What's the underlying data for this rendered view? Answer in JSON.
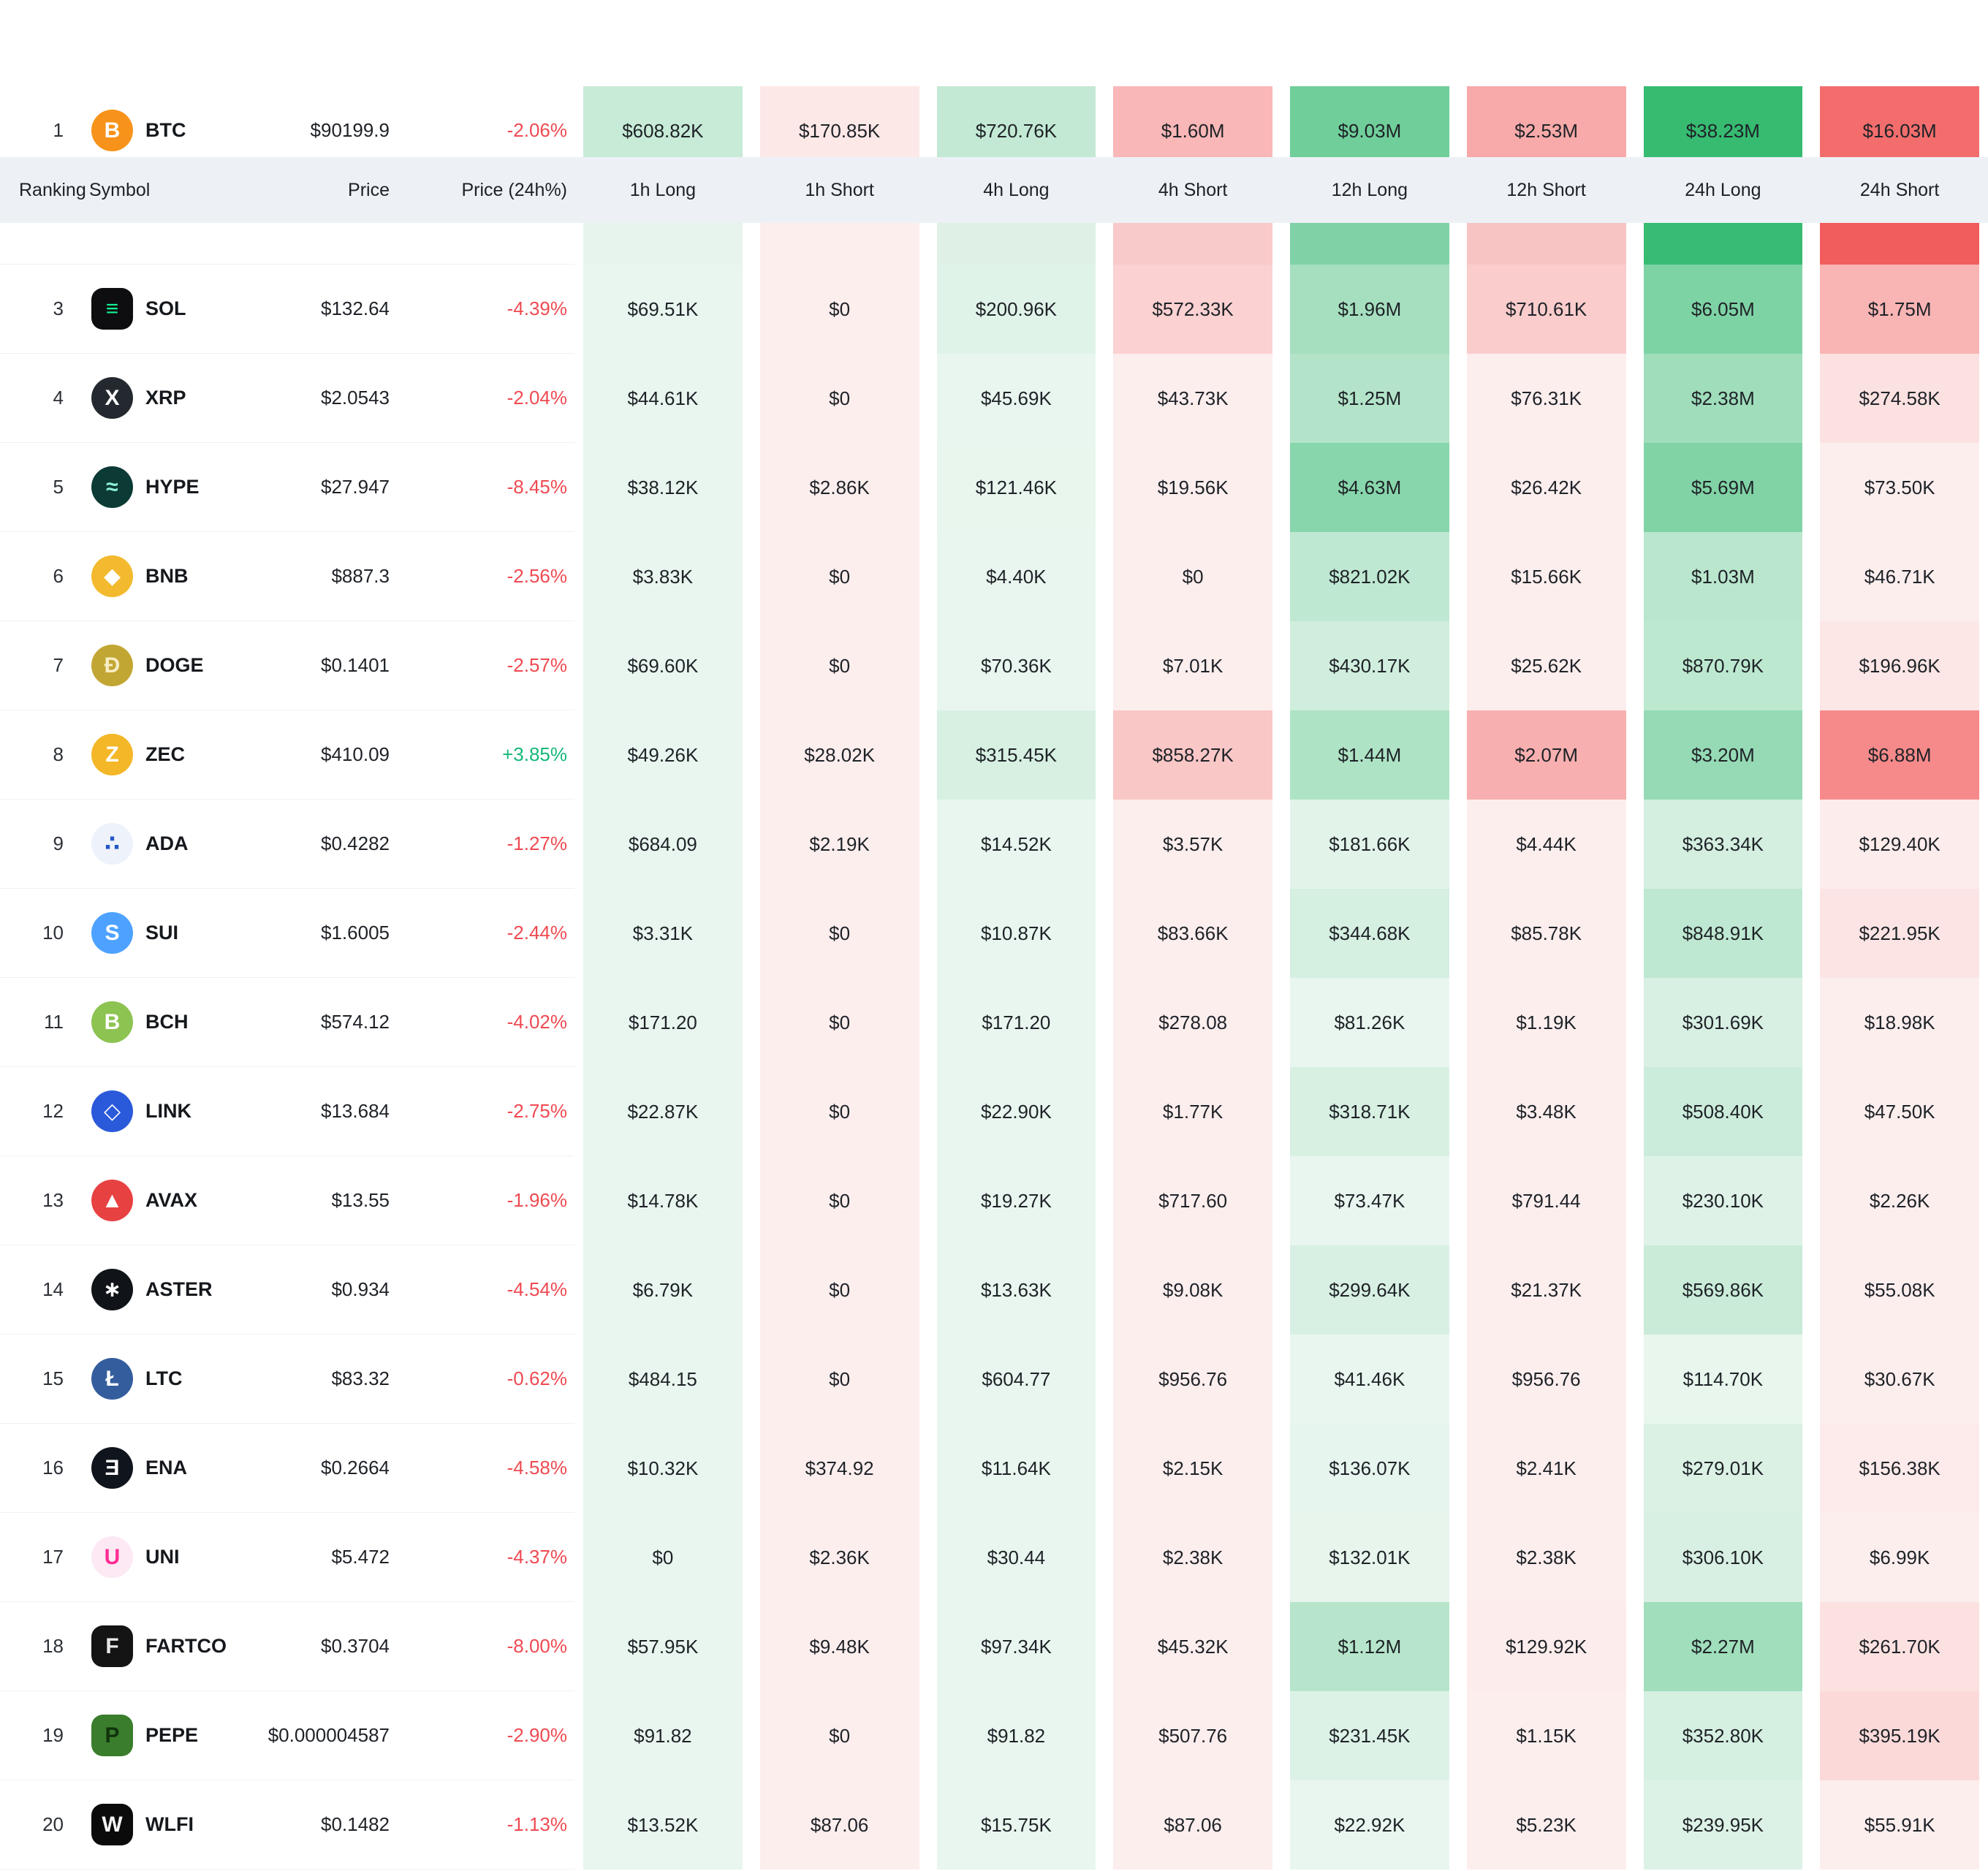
{
  "colors": {
    "positive": "#14b877",
    "negative": "#ef4a52",
    "header_bg": "#edf1f6",
    "heat": {
      "long_light": "#e9f6ef",
      "long_strong": "#34ba70",
      "short_light": "#fdeeee",
      "short_strong": "#f14b4b"
    }
  },
  "table": {
    "columns": [
      "Ranking",
      "Symbol",
      "Price",
      "Price (24h%)",
      "1h Long",
      "1h Short",
      "4h Long",
      "4h Short",
      "12h Long",
      "12h Short",
      "24h Long",
      "24h Short"
    ],
    "rows": [
      {
        "rank": "1",
        "symbol": "BTC",
        "price": "$90199.9",
        "change": "-2.06%",
        "icon": {
          "shape": "circle",
          "bg": "#f7931a",
          "fg": "#ffffff",
          "glyph": "B"
        },
        "cells": [
          "$608.82K",
          "$170.85K",
          "$720.76K",
          "$1.60M",
          "$9.03M",
          "$2.53M",
          "$38.23M",
          "$16.03M"
        ]
      },
      {
        "rank": "",
        "symbol": "",
        "price": "",
        "change": "",
        "partial": true,
        "cell_colors": [
          "#e7f4ed",
          "#fdeeee",
          "#dff1e7",
          "#f8caca",
          "#80d2a6",
          "#f7c3c3",
          "#38bb73",
          "#f15c5c"
        ]
      },
      {
        "rank": "3",
        "symbol": "SOL",
        "price": "$132.64",
        "change": "-4.39%",
        "icon": {
          "shape": "square",
          "bg": "#0e0e10",
          "fg": "#14f195",
          "glyph": "≡"
        },
        "cells": [
          "$69.51K",
          "$0",
          "$200.96K",
          "$572.33K",
          "$1.96M",
          "$710.61K",
          "$6.05M",
          "$1.75M"
        ]
      },
      {
        "rank": "4",
        "symbol": "XRP",
        "price": "$2.0543",
        "change": "-2.04%",
        "icon": {
          "shape": "circle",
          "bg": "#23292f",
          "fg": "#ffffff",
          "glyph": "X"
        },
        "cells": [
          "$44.61K",
          "$0",
          "$45.69K",
          "$43.73K",
          "$1.25M",
          "$76.31K",
          "$2.38M",
          "$274.58K"
        ]
      },
      {
        "rank": "5",
        "symbol": "HYPE",
        "price": "$27.947",
        "change": "-8.45%",
        "icon": {
          "shape": "circle",
          "bg": "#0c3a34",
          "fg": "#8df0d8",
          "glyph": "≈"
        },
        "cells": [
          "$38.12K",
          "$2.86K",
          "$121.46K",
          "$19.56K",
          "$4.63M",
          "$26.42K",
          "$5.69M",
          "$73.50K"
        ]
      },
      {
        "rank": "6",
        "symbol": "BNB",
        "price": "$887.3",
        "change": "-2.56%",
        "icon": {
          "shape": "circle",
          "bg": "#f3ba2f",
          "fg": "#ffffff",
          "glyph": "◆"
        },
        "cells": [
          "$3.83K",
          "$0",
          "$4.40K",
          "$0",
          "$821.02K",
          "$15.66K",
          "$1.03M",
          "$46.71K"
        ]
      },
      {
        "rank": "7",
        "symbol": "DOGE",
        "price": "$0.1401",
        "change": "-2.57%",
        "icon": {
          "shape": "circle",
          "bg": "#c2a633",
          "fg": "#f7edc4",
          "glyph": "Ð"
        },
        "cells": [
          "$69.60K",
          "$0",
          "$70.36K",
          "$7.01K",
          "$430.17K",
          "$25.62K",
          "$870.79K",
          "$196.96K"
        ]
      },
      {
        "rank": "8",
        "symbol": "ZEC",
        "price": "$410.09",
        "change": "+3.85%",
        "icon": {
          "shape": "circle",
          "bg": "#f4b728",
          "fg": "#ffffff",
          "glyph": "Z"
        },
        "cells": [
          "$49.26K",
          "$28.02K",
          "$315.45K",
          "$858.27K",
          "$1.44M",
          "$2.07M",
          "$3.20M",
          "$6.88M"
        ]
      },
      {
        "rank": "9",
        "symbol": "ADA",
        "price": "$0.4282",
        "change": "-1.27%",
        "icon": {
          "shape": "circle",
          "bg": "#eef3fb",
          "fg": "#2457c5",
          "glyph": "∴"
        },
        "cells": [
          "$684.09",
          "$2.19K",
          "$14.52K",
          "$3.57K",
          "$181.66K",
          "$4.44K",
          "$363.34K",
          "$129.40K"
        ]
      },
      {
        "rank": "10",
        "symbol": "SUI",
        "price": "$1.6005",
        "change": "-2.44%",
        "icon": {
          "shape": "circle",
          "bg": "#4da2ff",
          "fg": "#ffffff",
          "glyph": "S"
        },
        "cells": [
          "$3.31K",
          "$0",
          "$10.87K",
          "$83.66K",
          "$344.68K",
          "$85.78K",
          "$848.91K",
          "$221.95K"
        ]
      },
      {
        "rank": "11",
        "symbol": "BCH",
        "price": "$574.12",
        "change": "-4.02%",
        "icon": {
          "shape": "circle",
          "bg": "#8dc351",
          "fg": "#ffffff",
          "glyph": "B"
        },
        "cells": [
          "$171.20",
          "$0",
          "$171.20",
          "$278.08",
          "$81.26K",
          "$1.19K",
          "$301.69K",
          "$18.98K"
        ]
      },
      {
        "rank": "12",
        "symbol": "LINK",
        "price": "$13.684",
        "change": "-2.75%",
        "icon": {
          "shape": "circle",
          "bg": "#2a5ada",
          "fg": "#ffffff",
          "glyph": "◇"
        },
        "cells": [
          "$22.87K",
          "$0",
          "$22.90K",
          "$1.77K",
          "$318.71K",
          "$3.48K",
          "$508.40K",
          "$47.50K"
        ]
      },
      {
        "rank": "13",
        "symbol": "AVAX",
        "price": "$13.55",
        "change": "-1.96%",
        "icon": {
          "shape": "circle",
          "bg": "#e84142",
          "fg": "#ffffff",
          "glyph": "▲"
        },
        "cells": [
          "$14.78K",
          "$0",
          "$19.27K",
          "$717.60",
          "$73.47K",
          "$791.44",
          "$230.10K",
          "$2.26K"
        ]
      },
      {
        "rank": "14",
        "symbol": "ASTER",
        "price": "$0.934",
        "change": "-4.54%",
        "icon": {
          "shape": "circle",
          "bg": "#101418",
          "fg": "#ffffff",
          "glyph": "∗"
        },
        "cells": [
          "$6.79K",
          "$0",
          "$13.63K",
          "$9.08K",
          "$299.64K",
          "$21.37K",
          "$569.86K",
          "$55.08K"
        ]
      },
      {
        "rank": "15",
        "symbol": "LTC",
        "price": "$83.32",
        "change": "-0.62%",
        "icon": {
          "shape": "circle",
          "bg": "#345d9d",
          "fg": "#ffffff",
          "glyph": "Ł"
        },
        "cells": [
          "$484.15",
          "$0",
          "$604.77",
          "$956.76",
          "$41.46K",
          "$956.76",
          "$114.70K",
          "$30.67K"
        ]
      },
      {
        "rank": "16",
        "symbol": "ENA",
        "price": "$0.2664",
        "change": "-4.58%",
        "icon": {
          "shape": "circle",
          "bg": "#10141c",
          "fg": "#ffffff",
          "glyph": "Ǝ"
        },
        "cells": [
          "$10.32K",
          "$374.92",
          "$11.64K",
          "$2.15K",
          "$136.07K",
          "$2.41K",
          "$279.01K",
          "$156.38K"
        ]
      },
      {
        "rank": "17",
        "symbol": "UNI",
        "price": "$5.472",
        "change": "-4.37%",
        "icon": {
          "shape": "circle",
          "bg": "#fce9f4",
          "fg": "#ff2c94",
          "glyph": "U"
        },
        "cells": [
          "$0",
          "$2.36K",
          "$30.44",
          "$2.38K",
          "$132.01K",
          "$2.38K",
          "$306.10K",
          "$6.99K"
        ]
      },
      {
        "rank": "18",
        "symbol": "FARTCO",
        "price": "$0.3704",
        "change": "-8.00%",
        "icon": {
          "shape": "square",
          "bg": "#141414",
          "fg": "#e8e8e8",
          "glyph": "F"
        },
        "cells": [
          "$57.95K",
          "$9.48K",
          "$97.34K",
          "$45.32K",
          "$1.12M",
          "$129.92K",
          "$2.27M",
          "$261.70K"
        ]
      },
      {
        "rank": "19",
        "symbol": "PEPE",
        "price": "$0.000004587",
        "change": "-2.90%",
        "icon": {
          "shape": "square",
          "bg": "#3a7d2c",
          "fg": "#11330d",
          "glyph": "P"
        },
        "cells": [
          "$91.82",
          "$0",
          "$91.82",
          "$507.76",
          "$231.45K",
          "$1.15K",
          "$352.80K",
          "$395.19K"
        ]
      },
      {
        "rank": "20",
        "symbol": "WLFI",
        "price": "$0.1482",
        "change": "-1.13%",
        "icon": {
          "shape": "square",
          "bg": "#0b0b0b",
          "fg": "#f5f5f5",
          "glyph": "W"
        },
        "cells": [
          "$13.52K",
          "$87.06",
          "$15.75K",
          "$87.06",
          "$22.92K",
          "$5.23K",
          "$239.95K",
          "$55.91K"
        ]
      }
    ]
  }
}
